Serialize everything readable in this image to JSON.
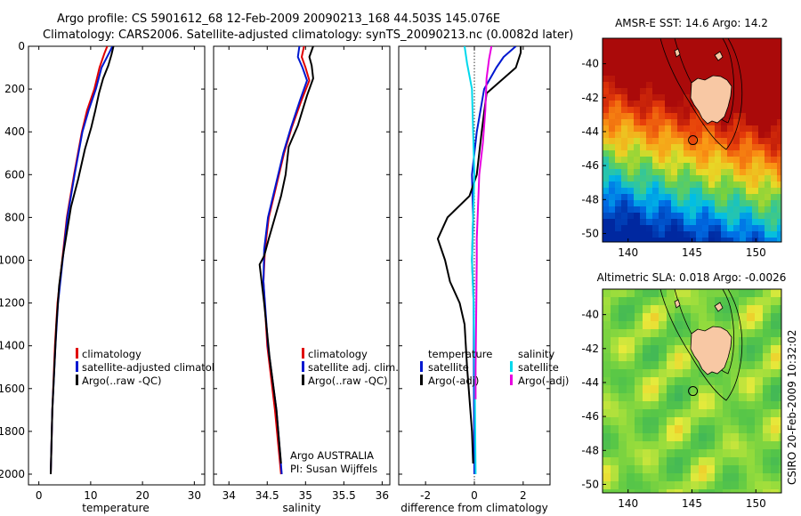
{
  "header": {
    "line1": "Argo profile: CS 5901612_68 12-Feb-2009 20090213_168 44.503S 145.076E",
    "line2": "Climatology: CARS2006. Satellite-adjusted climatology: synTS_20090213.nc (0.0082d later)"
  },
  "credit": "CSIRO 20-Feb-2009 10:32:02",
  "colors": {
    "climatology": "#e00000",
    "satellite": "#0018d0",
    "argo": "#000000",
    "satellite_salinity": "#00d8ec",
    "argo_adj_salinity": "#e800e0",
    "land": "#f8c8a4"
  },
  "chart_data": [
    {
      "type": "line",
      "xlabel": "temperature",
      "ylim": [
        2050,
        0
      ],
      "xlim": [
        -2,
        32
      ],
      "xticks": [
        "0",
        "10",
        "20",
        "30"
      ],
      "yticks": [
        "0",
        "200",
        "400",
        "600",
        "800",
        "1000",
        "1200",
        "1400",
        "1600",
        "1800",
        "2000"
      ],
      "legend": [
        "climatology",
        "satellite-adjusted climatology",
        "Argo(..raw -QC)"
      ],
      "series": [
        {
          "name": "climatology",
          "color": "#e00000",
          "x": [
            13.2,
            12.7,
            11.7,
            10.7,
            9.3,
            8.3,
            6.8,
            5.4,
            4.5,
            3.6,
            3.1,
            2.6,
            2.3
          ],
          "y": [
            0,
            30,
            100,
            200,
            300,
            400,
            600,
            800,
            1000,
            1200,
            1400,
            1700,
            2000
          ]
        },
        {
          "name": "satellite-adjusted climatology",
          "color": "#0018d0",
          "x": [
            14.2,
            13.6,
            12.1,
            11.0,
            9.6,
            8.4,
            6.9,
            5.5,
            4.6,
            3.7,
            3.2,
            2.6,
            2.3
          ],
          "y": [
            0,
            30,
            100,
            200,
            300,
            400,
            600,
            800,
            1000,
            1200,
            1400,
            1700,
            2000
          ]
        },
        {
          "name": "Argo(..raw -QC)",
          "color": "#000000",
          "x": [
            14.4,
            14.0,
            13.4,
            12.4,
            11.6,
            10.9,
            10.1,
            8.9,
            7.6,
            6.2,
            5.4,
            4.6,
            3.9,
            3.4,
            2.6,
            2.3
          ],
          "y": [
            0,
            40,
            90,
            150,
            220,
            300,
            380,
            480,
            620,
            750,
            870,
            990,
            1120,
            1300,
            1700,
            2000
          ]
        }
      ]
    },
    {
      "type": "line",
      "xlabel": "salinity",
      "ylim": [
        2050,
        0
      ],
      "xlim": [
        33.8,
        36.1
      ],
      "xticks": [
        "34",
        "34.5",
        "35",
        "35.5",
        "36"
      ],
      "legend": [
        "climatology",
        "satellite adj. clim.",
        "Argo(..raw -QC)"
      ],
      "annotations": [
        "Argo AUSTRALIA",
        "PI: Susan Wijffels"
      ],
      "series": [
        {
          "name": "climatology",
          "color": "#e00000",
          "x": [
            34.98,
            34.95,
            35.0,
            35.05,
            34.95,
            34.82,
            34.72,
            34.62,
            34.52,
            34.47,
            34.45,
            34.5,
            34.6,
            34.68
          ],
          "y": [
            0,
            50,
            100,
            160,
            250,
            380,
            500,
            650,
            800,
            950,
            1100,
            1400,
            1700,
            2000
          ]
        },
        {
          "name": "satellite adj. clim.",
          "color": "#0018d0",
          "x": [
            34.92,
            34.9,
            34.96,
            35.02,
            34.93,
            34.81,
            34.71,
            34.61,
            34.51,
            34.46,
            34.45,
            34.51,
            34.62,
            34.69
          ],
          "y": [
            0,
            50,
            100,
            160,
            250,
            380,
            500,
            650,
            800,
            950,
            1100,
            1400,
            1700,
            2000
          ]
        },
        {
          "name": "Argo(..raw -QC)",
          "color": "#000000",
          "x": [
            35.1,
            35.05,
            35.08,
            35.1,
            35.02,
            34.9,
            34.78,
            34.74,
            34.68,
            34.6,
            34.52,
            34.46,
            34.4,
            34.46,
            34.53,
            34.62,
            34.68
          ],
          "y": [
            0,
            50,
            90,
            150,
            230,
            370,
            470,
            600,
            700,
            800,
            900,
            980,
            1020,
            1200,
            1450,
            1700,
            1950
          ]
        }
      ]
    },
    {
      "type": "line",
      "xlabel": "difference from climatology",
      "ylim": [
        2050,
        0
      ],
      "xlim": [
        -3.1,
        3.1
      ],
      "xticks": [
        "-2",
        "0",
        "2"
      ],
      "legend": [
        "temperature",
        "satellite",
        "Argo(-adj)",
        "salinity",
        "satellite",
        "Argo(-adj)"
      ],
      "series": [
        {
          "name": "satellite",
          "color": "#0018d0",
          "x": [
            1.7,
            1.2,
            0.9,
            0.4,
            0.1,
            -0.1,
            -0.05,
            -0.1,
            -0.03,
            -0.02,
            0.0
          ],
          "y": [
            0,
            50,
            100,
            200,
            400,
            600,
            800,
            1000,
            1200,
            1600,
            2000
          ]
        },
        {
          "name": "Argo(-adj)",
          "color": "#000000",
          "x": [
            1.9,
            1.9,
            1.7,
            0.5,
            0.3,
            0.1,
            -0.2,
            -1.1,
            -1.5,
            -1.2,
            -1.0,
            -0.6,
            -0.4,
            -0.3,
            -0.1,
            -0.05
          ],
          "y": [
            0,
            30,
            100,
            220,
            400,
            600,
            700,
            800,
            900,
            1000,
            1100,
            1200,
            1300,
            1500,
            1800,
            1950
          ]
        },
        {
          "name": "satellite",
          "color": "#00d8ec",
          "x": [
            -0.4,
            -0.3,
            -0.1,
            -0.05,
            0.0,
            -0.05,
            -0.1,
            -0.03,
            0.02,
            0.05
          ],
          "y": [
            0,
            80,
            200,
            400,
            600,
            800,
            1000,
            1200,
            1600,
            2000
          ]
        },
        {
          "name": "Argo(-adj)",
          "color": "#e800e0",
          "x": [
            0.7,
            0.6,
            0.5,
            0.45,
            0.35,
            0.2,
            0.15,
            0.1,
            0.1,
            0.08,
            0.05,
            0.05
          ],
          "y": [
            0,
            60,
            150,
            300,
            450,
            600,
            750,
            900,
            1000,
            1200,
            1500,
            1650
          ]
        }
      ]
    },
    {
      "type": "heatmap",
      "title": "AMSR-E SST: 14.6 Argo: 14.2",
      "xlim": [
        138,
        152
      ],
      "ylim": [
        -50.5,
        -38.5
      ],
      "xticks": [
        "140",
        "145",
        "150"
      ],
      "yticks": [
        "-40",
        "-42",
        "-44",
        "-46",
        "-48",
        "-50"
      ],
      "marker": {
        "lon": 145.076,
        "lat": -44.503
      }
    },
    {
      "type": "heatmap",
      "title": "Altimetric SLA: 0.018 Argo: -0.0026",
      "xlim": [
        138,
        152
      ],
      "ylim": [
        -50.5,
        -38.5
      ],
      "xticks": [
        "140",
        "145",
        "150"
      ],
      "yticks": [
        "-40",
        "-42",
        "-44",
        "-46",
        "-48",
        "-50"
      ],
      "marker": {
        "lon": 145.076,
        "lat": -44.503
      }
    }
  ]
}
